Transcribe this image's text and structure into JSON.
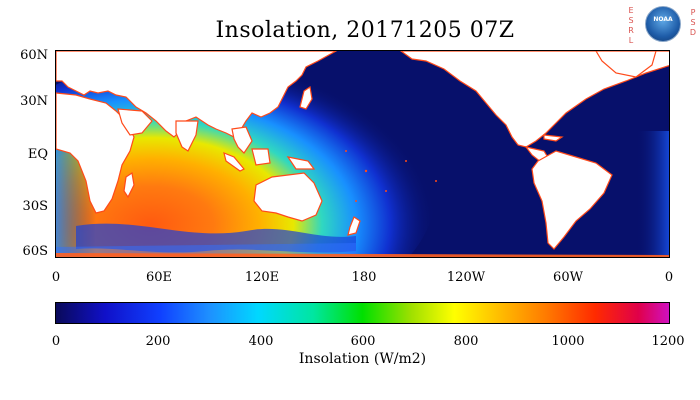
{
  "title": "Insolation, 20171205 07Z",
  "logo": {
    "left_letters": "E S R L",
    "right_letters": "P S D",
    "badge": "NOAA"
  },
  "map": {
    "lat_labels": [
      "60N",
      "30N",
      "EQ",
      "30S",
      "60S"
    ],
    "lon_labels": [
      "0",
      "60E",
      "120E",
      "180",
      "120W",
      "60W",
      "0"
    ]
  },
  "colorbar": {
    "ticks": [
      "0",
      "200",
      "400",
      "600",
      "800",
      "1000",
      "1200"
    ],
    "label": "Insolation (W/m2)",
    "range": [
      0,
      1200
    ]
  },
  "colors": {
    "night_ocean": "#07106b",
    "land": "#ffffff",
    "coast_highlight": "#ff4a1a"
  }
}
